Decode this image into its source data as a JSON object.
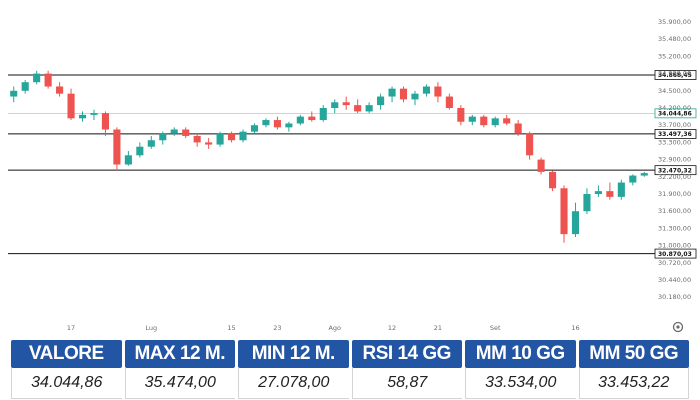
{
  "chart_data": {
    "type": "candlestick",
    "y_ticks": [
      "35.900,00",
      "35.480,00",
      "35.200,00",
      "34.900,00",
      "34.500,00",
      "34.200,00",
      "33.700,00",
      "33.300,00",
      "32.900,00",
      "32.200,00",
      "31.900,00",
      "31.600,00",
      "31.300,00",
      "31.000,00",
      "30.720,00",
      "30.440,00",
      "30.180,00"
    ],
    "x_ticks": [
      {
        "label": "17",
        "index": 5
      },
      {
        "label": "Lug",
        "index": 12
      },
      {
        "label": "15",
        "index": 19
      },
      {
        "label": "23",
        "index": 23
      },
      {
        "label": "Ago",
        "index": 28
      },
      {
        "label": "12",
        "index": 33
      },
      {
        "label": "21",
        "index": 37
      },
      {
        "label": "Set",
        "index": 42
      },
      {
        "label": "16",
        "index": 49
      }
    ],
    "levels": [
      {
        "label": "34.868,45",
        "value": 34868.45,
        "style": "line"
      },
      {
        "label": "33.497,36",
        "value": 33497.36,
        "style": "line"
      },
      {
        "label": "32.470,32",
        "value": 32470.32,
        "style": "line"
      },
      {
        "label": "30.870,03",
        "value": 30870.03,
        "style": "line"
      },
      {
        "label": "34.044,86",
        "value": 34044.86,
        "style": "current"
      }
    ],
    "candles": [
      {
        "o": 34400,
        "h": 34600,
        "l": 34300,
        "c": 34500
      },
      {
        "o": 34500,
        "h": 34750,
        "l": 34450,
        "c": 34700
      },
      {
        "o": 34700,
        "h": 34950,
        "l": 34650,
        "c": 34900
      },
      {
        "o": 34900,
        "h": 34950,
        "l": 34550,
        "c": 34600
      },
      {
        "o": 34600,
        "h": 34700,
        "l": 34400,
        "c": 34450
      },
      {
        "o": 34450,
        "h": 34550,
        "l": 33850,
        "c": 33900
      },
      {
        "o": 33900,
        "h": 34100,
        "l": 33800,
        "c": 34000
      },
      {
        "o": 34000,
        "h": 34150,
        "l": 33850,
        "c": 34050
      },
      {
        "o": 34050,
        "h": 34100,
        "l": 33450,
        "c": 33600
      },
      {
        "o": 33600,
        "h": 33650,
        "l": 32450,
        "c": 32700
      },
      {
        "o": 32700,
        "h": 33100,
        "l": 32650,
        "c": 33000
      },
      {
        "o": 33000,
        "h": 33300,
        "l": 32950,
        "c": 33200
      },
      {
        "o": 33200,
        "h": 33450,
        "l": 33150,
        "c": 33350
      },
      {
        "o": 33350,
        "h": 33550,
        "l": 33250,
        "c": 33500
      },
      {
        "o": 33500,
        "h": 33650,
        "l": 33450,
        "c": 33600
      },
      {
        "o": 33600,
        "h": 33650,
        "l": 33400,
        "c": 33450
      },
      {
        "o": 33450,
        "h": 33500,
        "l": 33200,
        "c": 33300
      },
      {
        "o": 33300,
        "h": 33400,
        "l": 33150,
        "c": 33250
      },
      {
        "o": 33250,
        "h": 33550,
        "l": 33200,
        "c": 33500
      },
      {
        "o": 33500,
        "h": 33550,
        "l": 33300,
        "c": 33350
      },
      {
        "o": 33350,
        "h": 33600,
        "l": 33300,
        "c": 33550
      },
      {
        "o": 33550,
        "h": 33750,
        "l": 33500,
        "c": 33700
      },
      {
        "o": 33700,
        "h": 33900,
        "l": 33650,
        "c": 33850
      },
      {
        "o": 33850,
        "h": 33950,
        "l": 33600,
        "c": 33650
      },
      {
        "o": 33650,
        "h": 33800,
        "l": 33550,
        "c": 33750
      },
      {
        "o": 33750,
        "h": 34000,
        "l": 33700,
        "c": 33950
      },
      {
        "o": 33950,
        "h": 34100,
        "l": 33800,
        "c": 33850
      },
      {
        "o": 33850,
        "h": 34250,
        "l": 33800,
        "c": 34200
      },
      {
        "o": 34200,
        "h": 34350,
        "l": 34050,
        "c": 34300
      },
      {
        "o": 34300,
        "h": 34400,
        "l": 34150,
        "c": 34250
      },
      {
        "o": 34250,
        "h": 34350,
        "l": 34050,
        "c": 34100
      },
      {
        "o": 34100,
        "h": 34300,
        "l": 34050,
        "c": 34250
      },
      {
        "o": 34250,
        "h": 34450,
        "l": 34150,
        "c": 34400
      },
      {
        "o": 34400,
        "h": 34600,
        "l": 34300,
        "c": 34550
      },
      {
        "o": 34550,
        "h": 34600,
        "l": 34300,
        "c": 34350
      },
      {
        "o": 34350,
        "h": 34500,
        "l": 34250,
        "c": 34450
      },
      {
        "o": 34450,
        "h": 34650,
        "l": 34400,
        "c": 34600
      },
      {
        "o": 34600,
        "h": 34700,
        "l": 34300,
        "c": 34400
      },
      {
        "o": 34400,
        "h": 34450,
        "l": 34150,
        "c": 34200
      },
      {
        "o": 34200,
        "h": 34250,
        "l": 33700,
        "c": 33800
      },
      {
        "o": 33800,
        "h": 34000,
        "l": 33700,
        "c": 33950
      },
      {
        "o": 33950,
        "h": 34000,
        "l": 33650,
        "c": 33700
      },
      {
        "o": 33700,
        "h": 33950,
        "l": 33650,
        "c": 33900
      },
      {
        "o": 33900,
        "h": 34000,
        "l": 33700,
        "c": 33750
      },
      {
        "o": 33750,
        "h": 33850,
        "l": 33450,
        "c": 33500
      },
      {
        "o": 33500,
        "h": 33550,
        "l": 32900,
        "c": 33000
      },
      {
        "o": 32900,
        "h": 32950,
        "l": 32300,
        "c": 32400
      },
      {
        "o": 32400,
        "h": 32450,
        "l": 31950,
        "c": 32000
      },
      {
        "o": 32000,
        "h": 32050,
        "l": 31050,
        "c": 31200
      },
      {
        "o": 31200,
        "h": 31750,
        "l": 31150,
        "c": 31600
      },
      {
        "o": 31600,
        "h": 32000,
        "l": 31550,
        "c": 31900
      },
      {
        "o": 31900,
        "h": 32050,
        "l": 31850,
        "c": 31950
      },
      {
        "o": 31950,
        "h": 32100,
        "l": 31800,
        "c": 31850
      },
      {
        "o": 31850,
        "h": 32150,
        "l": 31800,
        "c": 32100
      },
      {
        "o": 32100,
        "h": 32300,
        "l": 32050,
        "c": 32250
      },
      {
        "o": 32250,
        "h": 32400,
        "l": 32200,
        "c": 32350
      }
    ]
  },
  "stats": {
    "headers": [
      "VALORE",
      "MAX 12 M.",
      "MIN 12 M.",
      "RSI 14 GG",
      "MM 10 GG",
      "MM 50 GG"
    ],
    "values": [
      "34.044,86",
      "35.474,00",
      "27.078,00",
      "58,87",
      "33.534,00",
      "33.453,22"
    ]
  },
  "colors": {
    "up": "#26a69a",
    "down": "#ef5350",
    "header_bg": "#2355a5",
    "current_line": "#26a69a"
  },
  "icons": {
    "settings": "gear-icon"
  }
}
